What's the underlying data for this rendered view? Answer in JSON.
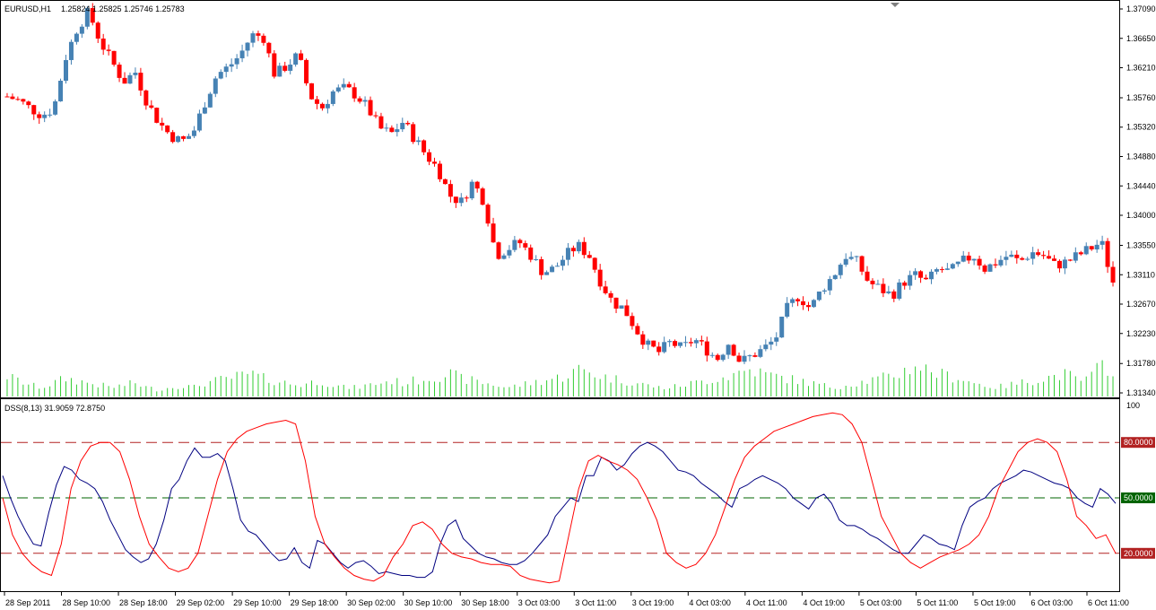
{
  "header": {
    "symbol": "EURUSD,H1",
    "ohlc": "1.25824 1.25825 1.25746 1.25783",
    "indicator": "DSS(8,13) 31.9059 72.8750"
  },
  "colors": {
    "bull": "#4682b4",
    "bear": "#ff0000",
    "volume": "#32cd32",
    "dss_main": "#000080",
    "dss_signal": "#ff0000",
    "level_red": "#b22222",
    "level_green": "#006400"
  },
  "chart_data": [
    {
      "type": "candlestick",
      "price_ticks": [
        "1.37090",
        "1.36650",
        "1.36210",
        "1.35760",
        "1.35320",
        "1.34880",
        "1.34440",
        "1.34000",
        "1.33550",
        "1.33110",
        "1.32670",
        "1.32230",
        "1.31780",
        "1.31340"
      ],
      "ylim": [
        1.3134,
        1.3709
      ],
      "x_ticks": [
        "28 Sep 2011",
        "28 Sep 10:00",
        "28 Sep 18:00",
        "29 Sep 02:00",
        "29 Sep 10:00",
        "29 Sep 18:00",
        "30 Sep 02:00",
        "30 Sep 10:00",
        "30 Sep 18:00",
        "3 Oct 03:00",
        "3 Oct 11:00",
        "3 Oct 19:00",
        "4 Oct 03:00",
        "4 Oct 11:00",
        "4 Oct 19:00",
        "5 Oct 03:00",
        "5 Oct 11:00",
        "5 Oct 19:00",
        "6 Oct 03:00",
        "6 Oct 11:00"
      ],
      "close_path": [
        1.3578,
        1.3572,
        1.356,
        1.355,
        1.356,
        1.3635,
        1.368,
        1.3705,
        1.366,
        1.363,
        1.36,
        1.3615,
        1.357,
        1.354,
        1.352,
        1.351,
        1.3525,
        1.357,
        1.361,
        1.3622,
        1.364,
        1.367,
        1.3668,
        1.361,
        1.3624,
        1.364,
        1.358,
        1.356,
        1.3585,
        1.359,
        1.358,
        1.356,
        1.353,
        1.3522,
        1.354,
        1.3515,
        1.349,
        1.347,
        1.343,
        1.342,
        1.345,
        1.342,
        1.334,
        1.335,
        1.336,
        1.334,
        1.3315,
        1.332,
        1.334,
        1.3355,
        1.334,
        1.33,
        1.327,
        1.326,
        1.323,
        1.3205,
        1.3195,
        1.321,
        1.32,
        1.3215,
        1.32,
        1.3185,
        1.321,
        1.318,
        1.319,
        1.32,
        1.3215,
        1.326,
        1.328,
        1.326,
        1.329,
        1.331,
        1.334,
        1.333,
        1.33,
        1.329,
        1.328,
        1.33,
        1.331,
        1.33,
        1.332,
        1.3315,
        1.333,
        1.334,
        1.332,
        1.333,
        1.334,
        1.333,
        1.3345,
        1.334,
        1.3325,
        1.333,
        1.334,
        1.335,
        1.336,
        1.33
      ],
      "volume_ylim": [
        0,
        100
      ],
      "volume": [
        45,
        35,
        25,
        20,
        30,
        40,
        35,
        30,
        25,
        20,
        25,
        30,
        20,
        15,
        20,
        25,
        20,
        30,
        35,
        40,
        45,
        50,
        40,
        35,
        30,
        25,
        30,
        35,
        25,
        20,
        20,
        25,
        30,
        35,
        30,
        35,
        40,
        45,
        50,
        40,
        35,
        30,
        25,
        20,
        25,
        30,
        35,
        40,
        45,
        60,
        55,
        45,
        40,
        35,
        30,
        25,
        20,
        20,
        25,
        30,
        35,
        40,
        45,
        55,
        60,
        50,
        45,
        40,
        35,
        30,
        25,
        20,
        25,
        30,
        35,
        40,
        45,
        55,
        70,
        60,
        50,
        45,
        40,
        30,
        25,
        20,
        25,
        30,
        35,
        40,
        45,
        50,
        35,
        40,
        70,
        60
      ]
    },
    {
      "type": "line",
      "title": "DSS(8,13) 31.9059 72.8750",
      "ylim": [
        0,
        100
      ],
      "y_ticks": [
        "100"
      ],
      "levels": [
        {
          "value": 80,
          "label": "80.0000",
          "color": "#b22222"
        },
        {
          "value": 50,
          "label": "50.0000",
          "color": "#006400"
        },
        {
          "value": 20,
          "label": "20.0000",
          "color": "#b22222"
        }
      ],
      "series": [
        {
          "values": [
            62,
            50,
            40,
            32,
            25,
            24,
            42,
            57,
            67,
            65,
            60,
            58,
            55,
            48,
            38,
            30,
            22,
            18,
            15,
            17,
            25,
            38,
            55,
            60,
            70,
            77,
            72,
            72,
            74,
            70,
            55,
            38,
            32,
            30,
            25,
            20,
            16,
            17,
            23,
            15,
            12,
            27,
            25,
            20,
            15,
            12,
            15,
            16,
            13,
            9,
            10,
            9,
            8,
            8,
            7,
            7,
            10,
            25,
            35,
            38,
            28,
            24,
            20,
            18,
            17,
            15,
            14,
            14,
            16,
            20,
            25,
            30,
            40,
            45,
            50,
            48,
            62,
            62,
            72,
            70,
            65,
            68,
            74,
            78,
            80,
            78,
            75,
            70,
            65,
            64,
            62,
            58,
            55,
            52,
            48,
            45,
            55,
            57,
            60,
            62,
            60,
            58,
            55,
            50,
            47,
            44,
            50,
            52,
            47,
            38,
            35,
            35,
            33,
            30,
            28,
            25,
            22,
            20,
            20,
            25,
            30,
            28,
            25,
            24,
            22,
            35,
            45,
            48,
            50,
            55,
            58,
            60,
            62,
            65,
            64,
            62,
            60,
            58,
            57,
            55,
            50,
            47,
            45,
            55,
            52,
            47
          ],
          "color": "#000080"
        },
        {
          "values": [
            50,
            30,
            20,
            14,
            10,
            8,
            25,
            55,
            70,
            78,
            80,
            80,
            75,
            60,
            40,
            25,
            18,
            12,
            10,
            12,
            20,
            40,
            60,
            75,
            82,
            86,
            88,
            90,
            91,
            92,
            90,
            70,
            40,
            25,
            18,
            12,
            8,
            6,
            5,
            8,
            18,
            25,
            35,
            37,
            33,
            25,
            20,
            18,
            17,
            15,
            14,
            14,
            13,
            8,
            6,
            5,
            4,
            5,
            30,
            55,
            70,
            73,
            70,
            68,
            65,
            60,
            50,
            38,
            20,
            15,
            12,
            14,
            20,
            30,
            45,
            60,
            72,
            78,
            82,
            86,
            88,
            90,
            92,
            94,
            95,
            96,
            95,
            90,
            80,
            60,
            40,
            30,
            20,
            15,
            12,
            15,
            18,
            20,
            22,
            25,
            30,
            40,
            55,
            65,
            75,
            80,
            82,
            80,
            75,
            60,
            40,
            35,
            28,
            30,
            20
          ],
          "color": "#ff0000"
        }
      ]
    }
  ]
}
